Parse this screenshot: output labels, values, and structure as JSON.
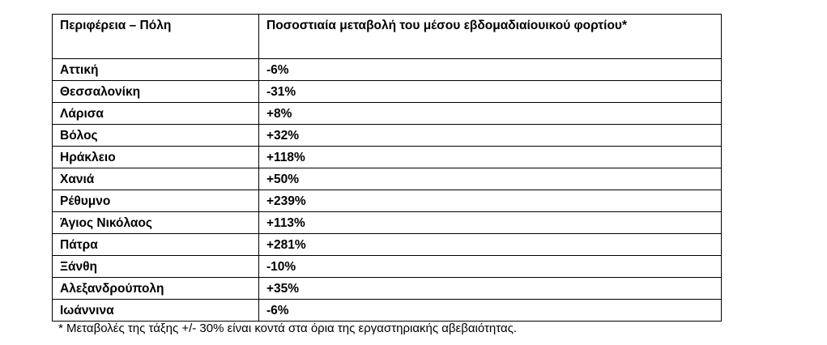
{
  "table": {
    "header": [
      "Περιφέρεια – Πόλη",
      "Ποσοστιαία μεταβολή του μέσου εβδομαδιαίουικού φορτίου*"
    ],
    "rows": [
      [
        "Αττική",
        "-6%"
      ],
      [
        "Θεσσαλονίκη",
        "-31%"
      ],
      [
        "Λάρισα",
        "+8%"
      ],
      [
        "Βόλος",
        "+32%"
      ],
      [
        "Ηράκλειο",
        "+118%"
      ],
      [
        "Χανιά",
        "+50%"
      ],
      [
        "Ρέθυμνο",
        "+239%"
      ],
      [
        "Άγιος Νικόλαος",
        "+113%"
      ],
      [
        "Πάτρα",
        "+281%"
      ],
      [
        "Ξάνθη",
        "-10%"
      ],
      [
        "Αλεξανδρούπολη",
        "+35%"
      ],
      [
        "Ιωάννινα",
        "-6%"
      ]
    ]
  },
  "footnote": "* Μεταβολές της τάξης +/- 30% είναι κοντά στα όρια της εργαστηριακής αβεβαιότητας."
}
